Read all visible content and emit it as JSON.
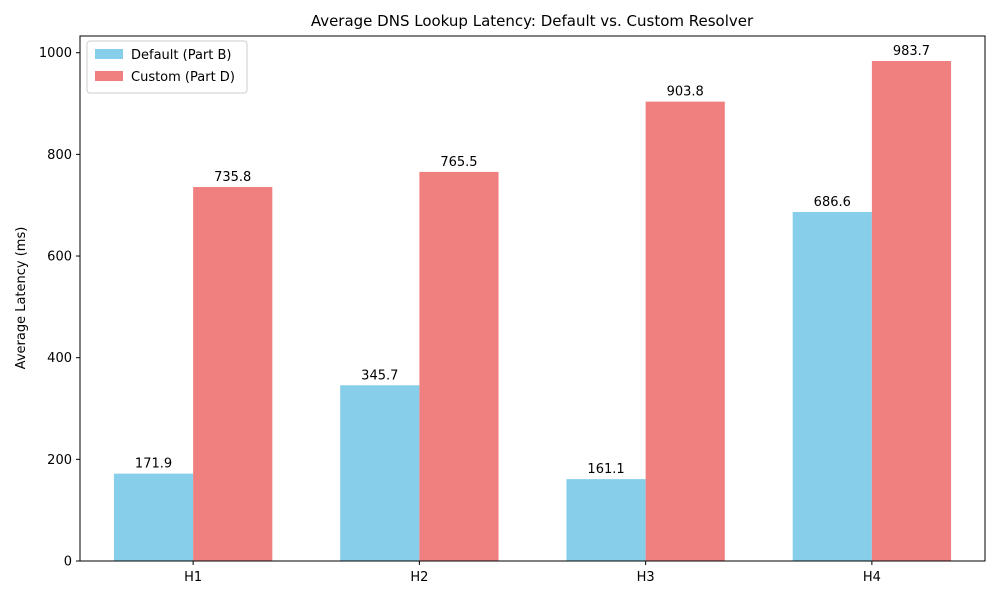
{
  "chart_data": {
    "type": "bar",
    "title": "Average DNS Lookup Latency: Default vs. Custom Resolver",
    "xlabel": "",
    "ylabel": "Average Latency (ms)",
    "categories": [
      "H1",
      "H2",
      "H3",
      "H4"
    ],
    "ylim": [
      0,
      1032.9
    ],
    "yticks": [
      0,
      200,
      400,
      600,
      800,
      1000
    ],
    "grid": false,
    "legend_position": "top-left",
    "series": [
      {
        "name": "Default (Part B)",
        "color": "#87ceeb",
        "values": [
          171.9,
          345.7,
          161.1,
          686.6
        ],
        "labels": [
          "171.9",
          "345.7",
          "161.1",
          "686.6"
        ]
      },
      {
        "name": "Custom (Part D)",
        "color": "#f08080",
        "values": [
          735.8,
          765.5,
          903.8,
          983.7
        ],
        "labels": [
          "735.8",
          "765.5",
          "903.8",
          "983.7"
        ]
      }
    ]
  }
}
